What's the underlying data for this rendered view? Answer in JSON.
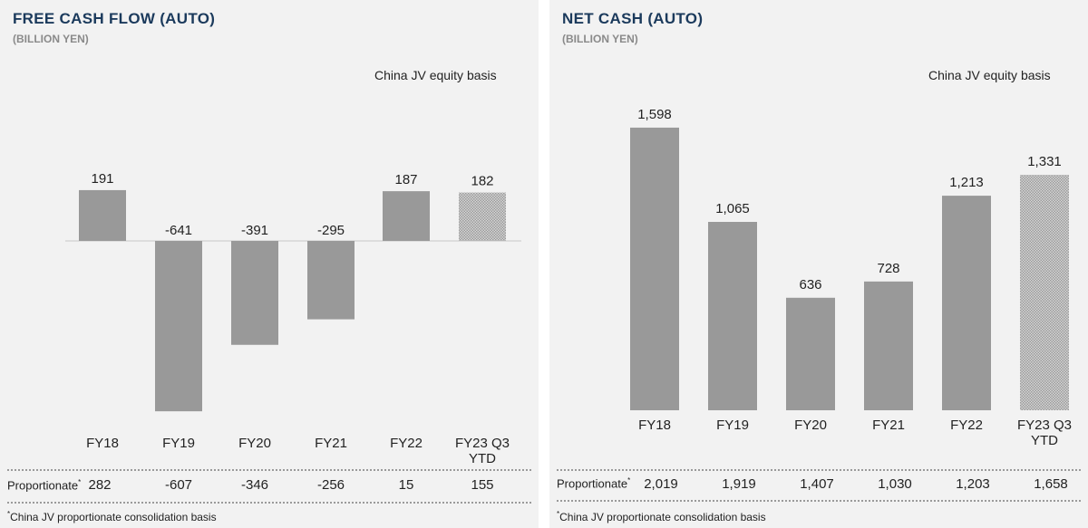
{
  "chart_data": [
    {
      "type": "bar",
      "title": "FREE CASH FLOW (AUTO)",
      "subtitle": "(BILLION YEN)",
      "annotation": "China JV equity basis",
      "categories": [
        "FY18",
        "FY19",
        "FY20",
        "FY21",
        "FY22",
        "FY23 Q3 YTD"
      ],
      "values": [
        191,
        -641,
        -391,
        -295,
        187,
        182
      ],
      "value_labels": [
        "191",
        "-641",
        "-391",
        "-295",
        "187",
        "182"
      ],
      "last_bar_style": "hatched",
      "bar_color": "#999999",
      "proportionate_label": "Proportionate",
      "proportionate_values": [
        "282",
        "-607",
        "-346",
        "-256",
        "15",
        "155"
      ],
      "footnote": "China JV proportionate consolidation basis",
      "ylim": [
        -700,
        250
      ]
    },
    {
      "type": "bar",
      "title": "NET CASH (AUTO)",
      "subtitle": "(BILLION YEN)",
      "annotation": "China JV equity basis",
      "categories": [
        "FY18",
        "FY19",
        "FY20",
        "FY21",
        "FY22",
        "FY23 Q3 YTD"
      ],
      "values": [
        1598,
        1065,
        636,
        728,
        1213,
        1331
      ],
      "value_labels": [
        "1,598",
        "1,065",
        "636",
        "728",
        "1,213",
        "1,331"
      ],
      "last_bar_style": "hatched",
      "bar_color": "#999999",
      "proportionate_label": "Proportionate",
      "proportionate_values": [
        "2,019",
        "1,919",
        "1,407",
        "1,030",
        "1,203",
        "1,658"
      ],
      "footnote": "China JV proportionate consolidation basis",
      "ylim": [
        0,
        1800
      ]
    }
  ]
}
